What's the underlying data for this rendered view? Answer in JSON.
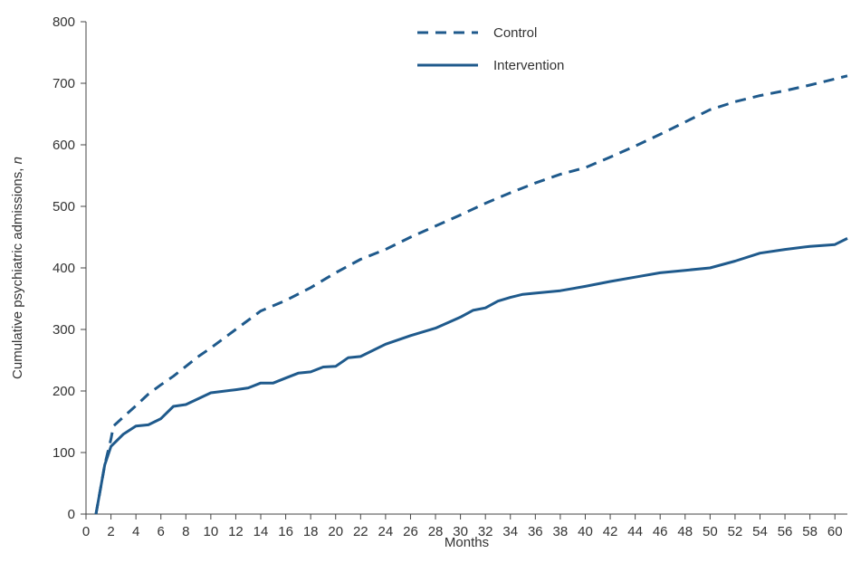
{
  "chart_data": {
    "type": "line",
    "title": "",
    "xlabel": "Months",
    "ylabel": "Cumulative psychiatric admissions, ",
    "ylabel_var": "n",
    "xlim": [
      0,
      61
    ],
    "ylim": [
      0,
      800
    ],
    "x_ticks": [
      0,
      2,
      4,
      6,
      8,
      10,
      12,
      14,
      16,
      18,
      20,
      22,
      24,
      26,
      28,
      30,
      32,
      34,
      36,
      38,
      40,
      42,
      44,
      46,
      48,
      50,
      52,
      54,
      56,
      58,
      60
    ],
    "y_ticks": [
      0,
      100,
      200,
      300,
      400,
      500,
      600,
      700,
      800
    ],
    "grid": false,
    "legend_position": "top-center",
    "line_color": "#1f5a8c",
    "series": [
      {
        "name": "Control",
        "style": "dashed",
        "x": [
          0.8,
          1.5,
          2,
          2.2,
          3,
          4,
          5,
          6,
          7,
          8,
          9,
          10,
          12,
          14,
          16,
          18,
          20,
          22,
          24,
          26,
          28,
          30,
          32,
          34,
          36,
          38,
          40,
          42,
          44,
          46,
          48,
          50,
          52,
          54,
          56,
          58,
          60,
          61
        ],
        "y": [
          0,
          80,
          122,
          143,
          158,
          176,
          195,
          210,
          224,
          240,
          256,
          270,
          300,
          330,
          347,
          368,
          392,
          414,
          430,
          450,
          468,
          486,
          505,
          522,
          538,
          552,
          563,
          580,
          598,
          617,
          637,
          657,
          670,
          680,
          688,
          697,
          707,
          712
        ]
      },
      {
        "name": "Intervention",
        "style": "solid",
        "x": [
          0.8,
          1.5,
          2,
          3,
          4,
          5,
          6,
          7,
          8,
          10,
          12,
          13,
          14,
          15,
          16,
          17,
          18,
          19,
          20,
          21,
          22,
          24,
          26,
          28,
          30,
          31,
          32,
          33,
          34,
          35,
          36,
          38,
          40,
          42,
          44,
          46,
          48,
          50,
          52,
          54,
          56,
          58,
          60,
          61
        ],
        "y": [
          0,
          80,
          110,
          130,
          143,
          145,
          155,
          175,
          178,
          197,
          202,
          205,
          213,
          213,
          221,
          229,
          231,
          239,
          240,
          254,
          256,
          276,
          290,
          302,
          320,
          331,
          335,
          346,
          352,
          357,
          359,
          363,
          370,
          378,
          385,
          392,
          396,
          400,
          411,
          424,
          430,
          435,
          438,
          448
        ]
      }
    ]
  }
}
